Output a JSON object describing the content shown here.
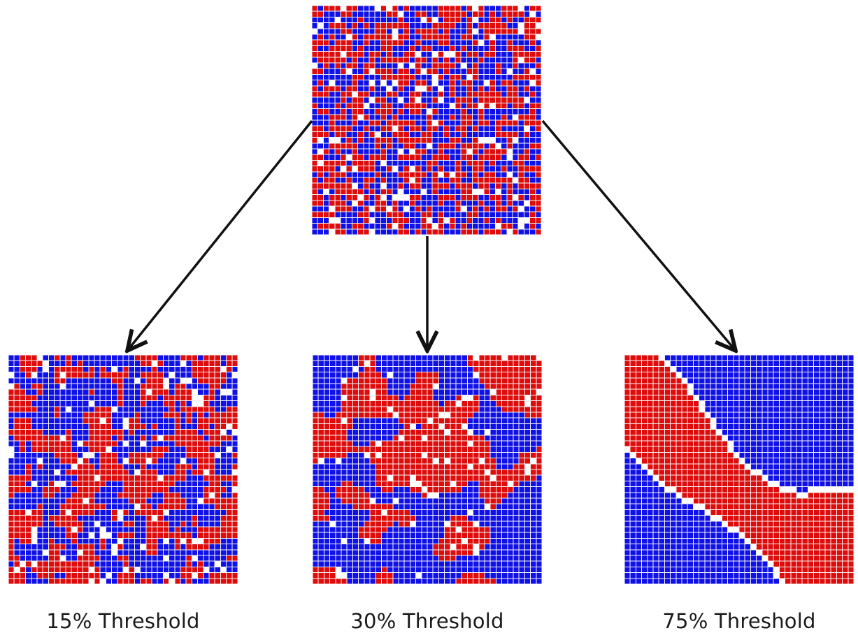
{
  "colors": {
    "group_a": "#e00b0b",
    "group_b": "#1010e8",
    "empty": "#ffffff",
    "grid_line": "#f4f4f4",
    "arrow": "#111111"
  },
  "grids": {
    "initial": {
      "pattern": "random-mix",
      "cells_per_side": 40
    },
    "threshold_15": {
      "label": "15% Threshold",
      "pattern": "fine-mix",
      "cells_per_side": 40
    },
    "threshold_30": {
      "label": "30% Threshold",
      "pattern": "clustered",
      "cells_per_side": 40
    },
    "threshold_75": {
      "label": "75% Threshold",
      "pattern": "segregated",
      "cells_per_side": 40
    }
  }
}
